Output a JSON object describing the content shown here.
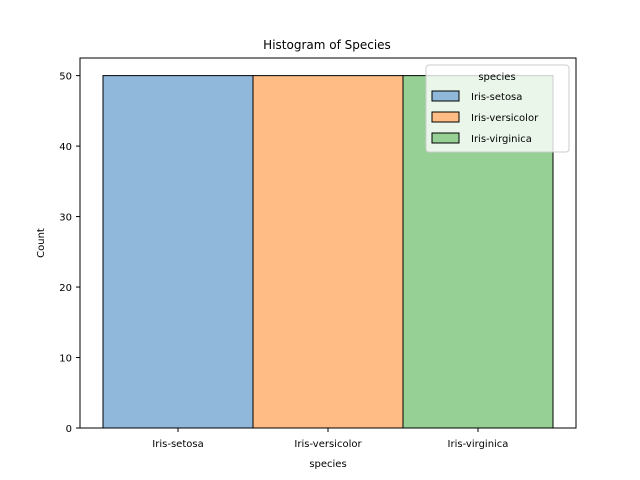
{
  "chart_data": {
    "type": "bar",
    "title": "Histogram of Species",
    "xlabel": "species",
    "ylabel": "Count",
    "categories": [
      "Iris-setosa",
      "Iris-versicolor",
      "Iris-virginica"
    ],
    "values": [
      50,
      50,
      50
    ],
    "ylim": [
      0,
      52.5
    ],
    "yticks": [
      0,
      10,
      20,
      30,
      40,
      50
    ],
    "grid": false,
    "legend": {
      "title": "species",
      "placement": "top-right",
      "entries": [
        "Iris-setosa",
        "Iris-versicolor",
        "Iris-virginica"
      ]
    },
    "colors": [
      "#8fb8da",
      "#ffbc85",
      "#97d095"
    ],
    "edge_color": "#000000"
  }
}
